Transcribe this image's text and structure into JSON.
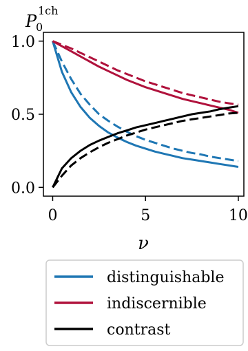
{
  "chart_data": {
    "type": "line",
    "ylabel_base": "P",
    "ylabel_sub": "0",
    "ylabel_sup": "1ch",
    "xlabel": "ν",
    "xlim": [
      -0.5,
      10.3
    ],
    "ylim": [
      -0.06,
      1.06
    ],
    "xticks": [
      {
        "value": 0,
        "label": "0"
      },
      {
        "value": 5,
        "label": "5"
      },
      {
        "value": 10,
        "label": "10"
      }
    ],
    "yticks": [
      {
        "value": 0,
        "label": "0.0"
      },
      {
        "value": 0.5,
        "label": "0.5"
      },
      {
        "value": 1,
        "label": "1.0"
      }
    ],
    "x": [
      0,
      0.5,
      1,
      1.5,
      2,
      2.5,
      3,
      3.5,
      4,
      4.5,
      5,
      5.5,
      6,
      6.5,
      7,
      7.5,
      8,
      8.5,
      9,
      9.5,
      10
    ],
    "series": [
      {
        "key": "distinguishable_solid",
        "color": "#1f77b4",
        "dashed": false,
        "values": [
          1.0,
          0.79,
          0.65,
          0.55,
          0.475,
          0.42,
          0.375,
          0.34,
          0.31,
          0.285,
          0.265,
          0.245,
          0.23,
          0.215,
          0.2,
          0.19,
          0.18,
          0.17,
          0.16,
          0.15,
          0.14
        ]
      },
      {
        "key": "distinguishable_dashed",
        "color": "#1f77b4",
        "dashed": true,
        "values": [
          1.0,
          0.86,
          0.74,
          0.64,
          0.565,
          0.5,
          0.455,
          0.415,
          0.38,
          0.35,
          0.325,
          0.305,
          0.285,
          0.265,
          0.25,
          0.235,
          0.225,
          0.21,
          0.2,
          0.19,
          0.18
        ]
      },
      {
        "key": "indiscernible_solid",
        "color": "#b0123c",
        "dashed": false,
        "values": [
          1.0,
          0.965,
          0.93,
          0.895,
          0.86,
          0.825,
          0.795,
          0.765,
          0.735,
          0.71,
          0.685,
          0.665,
          0.645,
          0.625,
          0.605,
          0.59,
          0.575,
          0.56,
          0.545,
          0.53,
          0.51
        ]
      },
      {
        "key": "indiscernible_dashed",
        "color": "#b0123c",
        "dashed": true,
        "values": [
          1.0,
          0.975,
          0.95,
          0.92,
          0.89,
          0.86,
          0.83,
          0.8,
          0.775,
          0.75,
          0.725,
          0.705,
          0.685,
          0.665,
          0.645,
          0.63,
          0.615,
          0.6,
          0.585,
          0.575,
          0.565
        ]
      },
      {
        "key": "contrast_solid",
        "color": "#000000",
        "dashed": false,
        "values": [
          0.0,
          0.13,
          0.2,
          0.25,
          0.29,
          0.32,
          0.345,
          0.37,
          0.39,
          0.41,
          0.425,
          0.44,
          0.455,
          0.47,
          0.485,
          0.5,
          0.51,
          0.52,
          0.535,
          0.545,
          0.555
        ]
      },
      {
        "key": "contrast_dashed",
        "color": "#000000",
        "dashed": true,
        "values": [
          0.0,
          0.08,
          0.15,
          0.2,
          0.24,
          0.275,
          0.305,
          0.33,
          0.355,
          0.375,
          0.395,
          0.41,
          0.425,
          0.44,
          0.455,
          0.465,
          0.475,
          0.485,
          0.495,
          0.505,
          0.51
        ]
      }
    ],
    "legend": [
      {
        "label": "distinguishable",
        "color": "#1f77b4"
      },
      {
        "label": "indiscernible",
        "color": "#b0123c"
      },
      {
        "label": "contrast",
        "color": "#000000"
      }
    ],
    "legend_position": "below"
  }
}
